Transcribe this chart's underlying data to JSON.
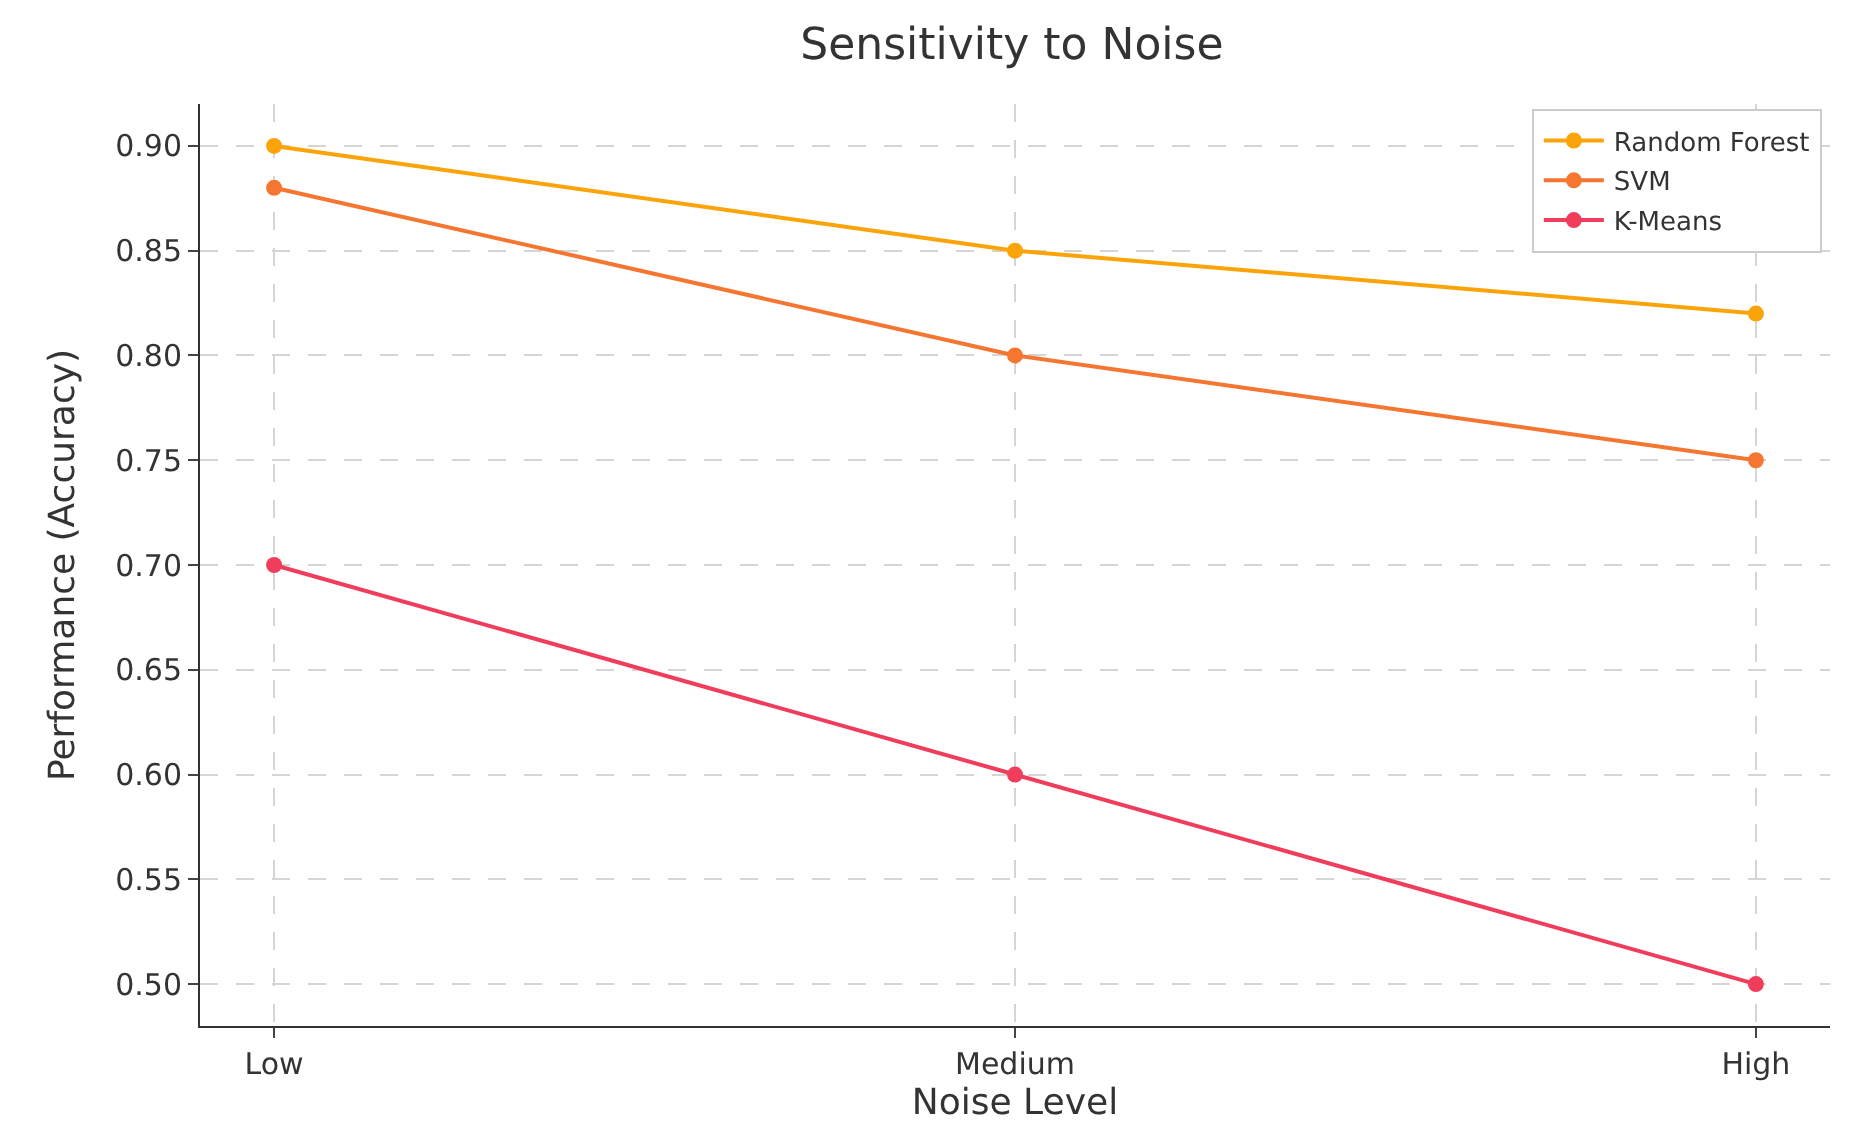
{
  "chart_data": {
    "type": "line",
    "title": "Sensitivity to Noise",
    "xlabel": "Noise Level",
    "ylabel": "Performance (Accuracy)",
    "categories": [
      "Low",
      "Medium",
      "High"
    ],
    "series": [
      {
        "name": "Random Forest",
        "color": "#fba40a",
        "values": [
          0.9,
          0.85,
          0.82
        ]
      },
      {
        "name": "SVM",
        "color": "#f57630",
        "values": [
          0.88,
          0.8,
          0.75
        ]
      },
      {
        "name": "K-Means",
        "color": "#f03d5c",
        "values": [
          0.7,
          0.6,
          0.5
        ]
      }
    ],
    "ylim": [
      0.48,
      0.92
    ],
    "yticks": [
      {
        "value": 0.5,
        "label": "0.50"
      },
      {
        "value": 0.55,
        "label": "0.55"
      },
      {
        "value": 0.6,
        "label": "0.60"
      },
      {
        "value": 0.65,
        "label": "0.65"
      },
      {
        "value": 0.7,
        "label": "0.70"
      },
      {
        "value": 0.75,
        "label": "0.75"
      },
      {
        "value": 0.8,
        "label": "0.80"
      },
      {
        "value": 0.85,
        "label": "0.85"
      },
      {
        "value": 0.9,
        "label": "0.90"
      }
    ],
    "grid": true,
    "legend": "top right",
    "marker": "circle",
    "line_style": "solid"
  }
}
